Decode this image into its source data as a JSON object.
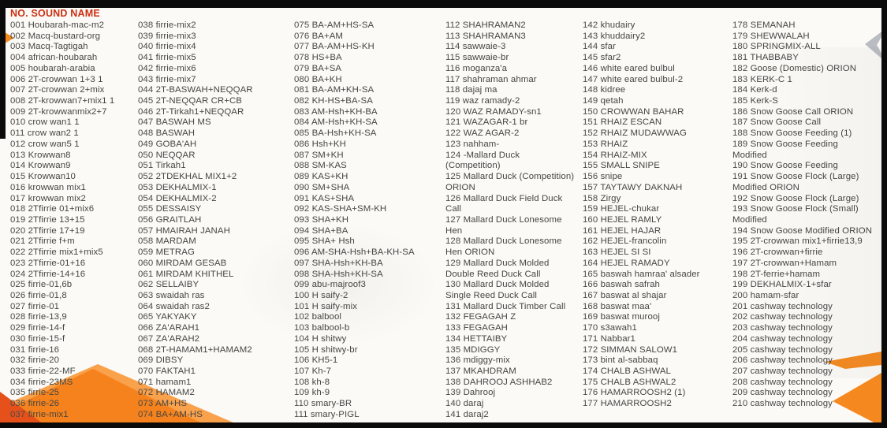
{
  "header": {
    "title": "NO. SOUND NAME"
  },
  "colors": {
    "header_red": "#cb2f12",
    "text": "#454543",
    "accent_orange": "#f5821c",
    "accent_orange_light": "#f9a14b",
    "accent_orange_dark": "#e6511b",
    "gray_arrow": "#b9bcc0",
    "frame_black": "#0b0b0b",
    "page_background": "#fbfaf6"
  },
  "decorations": [
    {
      "icon": "list-marker-triangle-icon"
    },
    {
      "icon": "gray-left-arrow-icon"
    },
    {
      "icon": "mountain-graphic"
    },
    {
      "icon": "orange-arrow-small-icon"
    },
    {
      "icon": "orange-arrow-large-icon"
    }
  ],
  "columns": [
    {
      "items": [
        {
          "no": "001",
          "name": "Houbarah-mac-m2"
        },
        {
          "no": "002",
          "name": "Macq-bustard-org"
        },
        {
          "no": "003",
          "name": "Macq-Tagtigah"
        },
        {
          "no": "004",
          "name": "african-houbarah"
        },
        {
          "no": "005",
          "name": "houbarah-arabia"
        },
        {
          "no": "006",
          "name": "2T-crowwan 1+3 1"
        },
        {
          "no": "007",
          "name": "2T-crowwan 2+mix"
        },
        {
          "no": "008",
          "name": "2T-krowwan7+mix1 1"
        },
        {
          "no": "009",
          "name": "2T-krowwanmix2+7"
        },
        {
          "no": "010",
          "name": "crow wan1 1"
        },
        {
          "no": "011",
          "name": "crow wan2 1"
        },
        {
          "no": "012",
          "name": "crow wan5 1"
        },
        {
          "no": "013",
          "name": "Krowwan8"
        },
        {
          "no": "014",
          "name": "Krowwan9"
        },
        {
          "no": "015",
          "name": "Krowwan10"
        },
        {
          "no": "016",
          "name": "krowwan mix1"
        },
        {
          "no": "017",
          "name": "krowwan mix2"
        },
        {
          "no": "018",
          "name": "2Tfirrie 01+mix6"
        },
        {
          "no": "019",
          "name": "2Tfirrie 13+15"
        },
        {
          "no": "020",
          "name": "2Tfirrie 17+19"
        },
        {
          "no": "021",
          "name": "2Tfirrie f+m"
        },
        {
          "no": "022",
          "name": "2Tfirrie mix1+mix5"
        },
        {
          "no": "023",
          "name": "2Tfirrie-01+16"
        },
        {
          "no": "024",
          "name": "2Tfirrie-14+16"
        },
        {
          "no": "025",
          "name": "firrie-01,6b"
        },
        {
          "no": "026",
          "name": "firrie-01,8"
        },
        {
          "no": "027",
          "name": "firrie-01"
        },
        {
          "no": "028",
          "name": "firrie-13,9"
        },
        {
          "no": "029",
          "name": "firrie-14-f"
        },
        {
          "no": "030",
          "name": "firrie-15-f"
        },
        {
          "no": "031",
          "name": "firrie-16"
        },
        {
          "no": "032",
          "name": "firrie-20"
        },
        {
          "no": "033",
          "name": "firrie-22-MF"
        },
        {
          "no": "034",
          "name": "firrie-23MS"
        },
        {
          "no": "035",
          "name": "firrie-25"
        },
        {
          "no": "036",
          "name": "firrie-26"
        },
        {
          "no": "037",
          "name": "firrie-mix1"
        }
      ]
    },
    {
      "items": [
        {
          "no": "038",
          "name": "firrie-mix2"
        },
        {
          "no": "039",
          "name": "firrie-mix3"
        },
        {
          "no": "040",
          "name": "firrie-mix4"
        },
        {
          "no": "041",
          "name": "firrie-mix5"
        },
        {
          "no": "042",
          "name": "firrie-mix6"
        },
        {
          "no": "043",
          "name": "firrie-mix7"
        },
        {
          "no": "044",
          "name": "2T-BASWAH+NEQQAR"
        },
        {
          "no": "045",
          "name": "2T-NEQQAR CR+CB"
        },
        {
          "no": "046",
          "name": "2T-Tirkah1+NEQQAR"
        },
        {
          "no": "047",
          "name": "BASWAH MS"
        },
        {
          "no": "048",
          "name": "BASWAH"
        },
        {
          "no": "049",
          "name": "GOBA'AH"
        },
        {
          "no": "050",
          "name": "NEQQAR"
        },
        {
          "no": "051",
          "name": "Tirkah1"
        },
        {
          "no": "052",
          "name": "2TDEKHAL MIX1+2"
        },
        {
          "no": "053",
          "name": "DEKHALMIX-1"
        },
        {
          "no": "054",
          "name": "DEKHALMIX-2"
        },
        {
          "no": "055",
          "name": "DESSAISY"
        },
        {
          "no": "056",
          "name": "GRAITLAH"
        },
        {
          "no": "057",
          "name": "HMAIRAH JANAH"
        },
        {
          "no": "058",
          "name": "MARDAM"
        },
        {
          "no": "059",
          "name": "METRAG"
        },
        {
          "no": "060",
          "name": "MIRDAM GESAB"
        },
        {
          "no": "061",
          "name": "MIRDAM KHITHEL"
        },
        {
          "no": "062",
          "name": "SELLAIBY"
        },
        {
          "no": "063",
          "name": "swaidah ras"
        },
        {
          "no": "064",
          "name": "swaidah ras2"
        },
        {
          "no": "065",
          "name": "YAKYAKY"
        },
        {
          "no": "066",
          "name": "ZA'ARAH1"
        },
        {
          "no": "067",
          "name": "ZA'ARAH2"
        },
        {
          "no": "068",
          "name": "2T-HAMAM1+HAMAM2"
        },
        {
          "no": "069",
          "name": "DIBSY"
        },
        {
          "no": "070",
          "name": "FAKTAH1"
        },
        {
          "no": "071",
          "name": "hamam1"
        },
        {
          "no": "072",
          "name": "HAMAM2"
        },
        {
          "no": "073",
          "name": "AM+HS"
        },
        {
          "no": "074",
          "name": "BA+AM-HS"
        }
      ]
    },
    {
      "items": [
        {
          "no": "075",
          "name": "BA-AM+HS-SA"
        },
        {
          "no": "076",
          "name": "BA+AM"
        },
        {
          "no": "077",
          "name": "BA-AM+HS-KH"
        },
        {
          "no": "078",
          "name": "HS+BA"
        },
        {
          "no": "079",
          "name": "BA+SA"
        },
        {
          "no": "080",
          "name": "BA+KH"
        },
        {
          "no": "081",
          "name": "BA-AM+KH-SA"
        },
        {
          "no": "082",
          "name": "KH-HS+BA-SA"
        },
        {
          "no": "083",
          "name": "AM-Hsh+KH-BA"
        },
        {
          "no": "084",
          "name": "AM-Hsh+KH-SA"
        },
        {
          "no": "085",
          "name": "BA-Hsh+KH-SA"
        },
        {
          "no": "086",
          "name": "Hsh+KH"
        },
        {
          "no": "087",
          "name": "SM+KH"
        },
        {
          "no": "088",
          "name": "SM-KAS"
        },
        {
          "no": "089",
          "name": "KAS+KH"
        },
        {
          "no": "090",
          "name": "SM+SHA"
        },
        {
          "no": "091",
          "name": "KAS+SHA"
        },
        {
          "no": "092",
          "name": "KAS-SHA+SM-KH"
        },
        {
          "no": "093",
          "name": "SHA+KH"
        },
        {
          "no": "094",
          "name": "SHA+BA"
        },
        {
          "no": "095",
          "name": "SHA+ Hsh"
        },
        {
          "no": "096",
          "name": "AM-SHA-Hsh+BA-KH-SA"
        },
        {
          "no": "097",
          "name": "SHA-Hsh+KH-BA"
        },
        {
          "no": "098",
          "name": "SHA-Hsh+KH-SA"
        },
        {
          "no": "099",
          "name": "abu-majroof3"
        },
        {
          "no": "100",
          "name": "H saify-2"
        },
        {
          "no": "101",
          "name": "H saify-mix"
        },
        {
          "no": "102",
          "name": "balbool"
        },
        {
          "no": "103",
          "name": "balbool-b"
        },
        {
          "no": "104",
          "name": "H shitwy"
        },
        {
          "no": "105",
          "name": "H shitwy-br"
        },
        {
          "no": "106",
          "name": "KH5-1"
        },
        {
          "no": "107",
          "name": "Kh-7"
        },
        {
          "no": "108",
          "name": "kh-8"
        },
        {
          "no": "109",
          "name": "kh-9"
        },
        {
          "no": "110",
          "name": "smary-BR"
        },
        {
          "no": "111",
          "name": "smary-PIGL"
        }
      ]
    },
    {
      "items": [
        {
          "no": "112",
          "name": "SHAHRAMAN2"
        },
        {
          "no": "113",
          "name": "SHAHRAMAN3"
        },
        {
          "no": "114",
          "name": "sawwaie-3"
        },
        {
          "no": "115",
          "name": "sawwaie-br"
        },
        {
          "no": "116",
          "name": "moganza'a"
        },
        {
          "no": "117",
          "name": "shahraman ahmar"
        },
        {
          "no": "118",
          "name": "dajaj ma"
        },
        {
          "no": "119",
          "name": "waz ramady-2"
        },
        {
          "no": "120",
          "name": "WAZ RAMADY-sn1"
        },
        {
          "no": "121",
          "name": "WAZAGAR-1 br"
        },
        {
          "no": "122",
          "name": "WAZ AGAR-2"
        },
        {
          "no": "123",
          "name": "nahham-"
        },
        {
          "no": "124",
          "name": "-Mallard Duck\n(Competition)"
        },
        {
          "no": "125",
          "name": "Mallard Duck (Competition)\nORION"
        },
        {
          "no": "126",
          "name": "Mallard Duck Field Duck\nCall"
        },
        {
          "no": "127",
          "name": "Mallard Duck Lonesome\nHen"
        },
        {
          "no": "128",
          "name": "Mallard Duck Lonesome\nHen ORION"
        },
        {
          "no": "129",
          "name": "Mallard Duck Molded\nDouble Reed Duck Call"
        },
        {
          "no": "130",
          "name": "Mallard Duck Molded\nSingle Reed Duck Call"
        },
        {
          "no": "131",
          "name": "Mallard Duck Timber Call"
        },
        {
          "no": "132",
          "name": "FEGAGAH Z"
        },
        {
          "no": "133",
          "name": "FEGAGAH"
        },
        {
          "no": "134",
          "name": "HETTAIBY"
        },
        {
          "no": "135",
          "name": "MDIGGY"
        },
        {
          "no": "136",
          "name": "mdiggy-mix"
        },
        {
          "no": "137",
          "name": "MKAHDRAM"
        },
        {
          "no": "138",
          "name": "DAHROOJ ASHHAB2"
        },
        {
          "no": "139",
          "name": "Dahrooj"
        },
        {
          "no": "140",
          "name": "daraj"
        },
        {
          "no": "141",
          "name": "daraj2"
        }
      ]
    },
    {
      "items": [
        {
          "no": "142",
          "name": "khudairy"
        },
        {
          "no": "143",
          "name": "khuddairy2"
        },
        {
          "no": "144",
          "name": "sfar"
        },
        {
          "no": "145",
          "name": "sfar2"
        },
        {
          "no": "146",
          "name": "white eared bulbul"
        },
        {
          "no": "147",
          "name": "white eared bulbul-2"
        },
        {
          "no": "148",
          "name": "kidree"
        },
        {
          "no": "149",
          "name": "qetah"
        },
        {
          "no": "150",
          "name": "CROWWAN BAHAR"
        },
        {
          "no": "151",
          "name": "RHAIZ ESCAN"
        },
        {
          "no": "152",
          "name": "RHAIZ MUDAWWAG"
        },
        {
          "no": "153",
          "name": "RHAIZ"
        },
        {
          "no": "154",
          "name": "RHAIZ-MIX"
        },
        {
          "no": "155",
          "name": "SMALL SNIPE"
        },
        {
          "no": "156",
          "name": "snipe"
        },
        {
          "no": "157",
          "name": "TAYTAWY DAKNAH"
        },
        {
          "no": "158",
          "name": "Zirgy"
        },
        {
          "no": "159",
          "name": "HEJEL-chukar"
        },
        {
          "no": "160",
          "name": "HEJEL RAMLY"
        },
        {
          "no": "161",
          "name": "HEJEL HAJAR"
        },
        {
          "no": "162",
          "name": "HEJEL-francolin"
        },
        {
          "no": "163",
          "name": "HEJEL SI SI"
        },
        {
          "no": "164",
          "name": "HEJEL RAMADY"
        },
        {
          "no": "165",
          "name": "baswah hamraa' alsader"
        },
        {
          "no": "166",
          "name": "baswah safrah"
        },
        {
          "no": "167",
          "name": "baswat al shajar"
        },
        {
          "no": "168",
          "name": "baswat maa'"
        },
        {
          "no": "169",
          "name": "baswat murooj"
        },
        {
          "no": "170",
          "name": "s3awah1"
        },
        {
          "no": "171",
          "name": "Nabbar1"
        },
        {
          "no": "172",
          "name": "SIMMAN SALOW1"
        },
        {
          "no": "173",
          "name": "bint al-sabbaq"
        },
        {
          "no": "174",
          "name": "CHALB ASHWAL"
        },
        {
          "no": "175",
          "name": "CHALB ASHWAL2"
        },
        {
          "no": "176",
          "name": "HAMARROOSH2 (1)"
        },
        {
          "no": "177",
          "name": "HAMARROOSH2"
        }
      ]
    },
    {
      "items": [
        {
          "no": "178",
          "name": "SEMANAH"
        },
        {
          "no": "179",
          "name": "SHEWWALAH"
        },
        {
          "no": "180",
          "name": "SPRINGMIX-ALL"
        },
        {
          "no": "181",
          "name": "THABBABY"
        },
        {
          "no": "182",
          "name": "Goose (Domestic) ORION"
        },
        {
          "no": "183",
          "name": "KERK-C 1"
        },
        {
          "no": "184",
          "name": "Kerk-d"
        },
        {
          "no": "185",
          "name": "Kerk-S"
        },
        {
          "no": "186",
          "name": "Snow Goose Call ORION"
        },
        {
          "no": "187",
          "name": "Snow Goose Call"
        },
        {
          "no": "188",
          "name": "Snow Goose Feeding (1)"
        },
        {
          "no": "189",
          "name": "Snow Goose Feeding\nModified"
        },
        {
          "no": "190",
          "name": "Snow Goose Feeding"
        },
        {
          "no": "191",
          "name": "Snow Goose Flock (Large)\nModified ORION"
        },
        {
          "no": "192",
          "name": "Snow Goose Flock (Large)"
        },
        {
          "no": "193",
          "name": "Snow Goose Flock (Small)\nModified"
        },
        {
          "no": "194",
          "name": "Snow Goose Modified ORION"
        },
        {
          "no": "195",
          "name": "2T-crowwan mix1+firrie13,9"
        },
        {
          "no": "196",
          "name": "2T-crowwan+firrie"
        },
        {
          "no": "197",
          "name": "2T-crowwan+Hamam"
        },
        {
          "no": "198",
          "name": "2T-ferrie+hamam"
        },
        {
          "no": "199",
          "name": "DEKHALMIX-1+sfar"
        },
        {
          "no": "200",
          "name": "hamam-sfar"
        },
        {
          "no": "201",
          "name": "cashway technology"
        },
        {
          "no": "202",
          "name": "cashway technology"
        },
        {
          "no": "203",
          "name": "cashway technology"
        },
        {
          "no": "204",
          "name": "cashway technology"
        },
        {
          "no": "205",
          "name": "cashway technology"
        },
        {
          "no": "206",
          "name": "cashway technology"
        },
        {
          "no": "207",
          "name": "cashway technology"
        },
        {
          "no": "208",
          "name": "cashway technology"
        },
        {
          "no": "209",
          "name": "cashway technology"
        },
        {
          "no": "210",
          "name": "cashway technology"
        }
      ]
    }
  ]
}
